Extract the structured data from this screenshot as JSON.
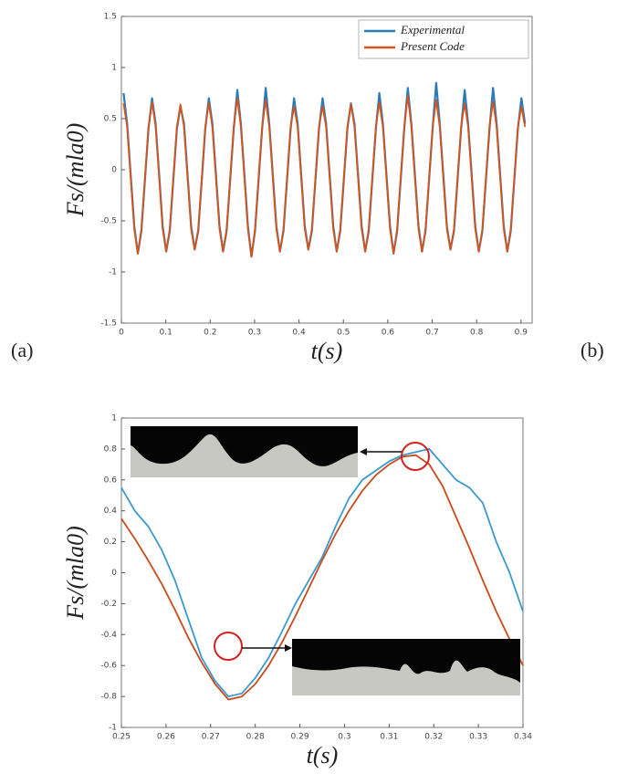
{
  "panel_labels": [
    "(a)",
    "(b)"
  ],
  "chart_data": [
    {
      "type": "line",
      "xlabel": "t(s)",
      "ylabel": "Fs/(mla0)",
      "xlim": [
        0,
        0.925
      ],
      "ylim": [
        -1.5,
        1.5
      ],
      "xticks": [
        0,
        0.1,
        0.2,
        0.3,
        0.4,
        0.5,
        0.6,
        0.7,
        0.8,
        0.9
      ],
      "yticks": [
        -1.5,
        -1,
        -0.5,
        0,
        0.5,
        1,
        1.5
      ],
      "grid": false,
      "legend": "upper right",
      "x": [
        0.005,
        0.013,
        0.021,
        0.029,
        0.037,
        0.045,
        0.053,
        0.061,
        0.069,
        0.077,
        0.085,
        0.093,
        0.101,
        0.109,
        0.117,
        0.125,
        0.133,
        0.141,
        0.149,
        0.157,
        0.165,
        0.173,
        0.181,
        0.189,
        0.197,
        0.205,
        0.213,
        0.221,
        0.229,
        0.237,
        0.245,
        0.253,
        0.261,
        0.269,
        0.277,
        0.285,
        0.293,
        0.301,
        0.309,
        0.317,
        0.325,
        0.333,
        0.341,
        0.349,
        0.357,
        0.365,
        0.373,
        0.381,
        0.389,
        0.397,
        0.405,
        0.413,
        0.421,
        0.429,
        0.437,
        0.445,
        0.453,
        0.461,
        0.469,
        0.477,
        0.485,
        0.493,
        0.501,
        0.509,
        0.517,
        0.525,
        0.533,
        0.541,
        0.549,
        0.557,
        0.565,
        0.573,
        0.581,
        0.589,
        0.597,
        0.605,
        0.613,
        0.621,
        0.629,
        0.637,
        0.645,
        0.653,
        0.661,
        0.669,
        0.677,
        0.685,
        0.693,
        0.701,
        0.709,
        0.717,
        0.725,
        0.733,
        0.741,
        0.749,
        0.757,
        0.765,
        0.773,
        0.781,
        0.789,
        0.797,
        0.805,
        0.813,
        0.821,
        0.829,
        0.837,
        0.845,
        0.853,
        0.861,
        0.869,
        0.877,
        0.885,
        0.893,
        0.901,
        0.909
      ],
      "series": [
        {
          "name": "Experimental",
          "color": "#2b7bb9",
          "values": [
            0.75,
            0.45,
            -0.05,
            -0.55,
            -0.82,
            -0.6,
            -0.1,
            0.4,
            0.7,
            0.45,
            -0.05,
            -0.55,
            -0.8,
            -0.6,
            -0.1,
            0.4,
            0.62,
            0.45,
            -0.05,
            -0.55,
            -0.78,
            -0.6,
            -0.1,
            0.4,
            0.7,
            0.45,
            -0.05,
            -0.55,
            -0.8,
            -0.6,
            -0.1,
            0.4,
            0.78,
            0.45,
            -0.05,
            -0.55,
            -0.85,
            -0.6,
            -0.1,
            0.4,
            0.8,
            0.45,
            -0.05,
            -0.55,
            -0.8,
            -0.6,
            -0.1,
            0.4,
            0.7,
            0.45,
            -0.05,
            -0.55,
            -0.78,
            -0.6,
            -0.1,
            0.4,
            0.7,
            0.45,
            -0.05,
            -0.55,
            -0.8,
            -0.6,
            -0.1,
            0.4,
            0.65,
            0.45,
            -0.05,
            -0.55,
            -0.8,
            -0.6,
            -0.1,
            0.4,
            0.75,
            0.45,
            -0.05,
            -0.55,
            -0.82,
            -0.6,
            -0.1,
            0.4,
            0.8,
            0.45,
            -0.05,
            -0.55,
            -0.8,
            -0.6,
            -0.1,
            0.4,
            0.85,
            0.45,
            -0.05,
            -0.55,
            -0.78,
            -0.6,
            -0.1,
            0.4,
            0.78,
            0.45,
            -0.05,
            -0.55,
            -0.8,
            -0.6,
            -0.1,
            0.4,
            0.8,
            0.45,
            -0.05,
            -0.55,
            -0.8,
            -0.6,
            -0.1,
            0.4,
            0.7,
            0.45
          ]
        },
        {
          "name": "Present Code",
          "color": "#d95319",
          "values": [
            0.65,
            0.42,
            -0.08,
            -0.58,
            -0.82,
            -0.58,
            -0.08,
            0.42,
            0.66,
            0.42,
            -0.08,
            -0.58,
            -0.8,
            -0.58,
            -0.08,
            0.42,
            0.64,
            0.42,
            -0.08,
            -0.58,
            -0.78,
            -0.58,
            -0.08,
            0.42,
            0.65,
            0.42,
            -0.08,
            -0.58,
            -0.8,
            -0.58,
            -0.08,
            0.42,
            0.7,
            0.42,
            -0.08,
            -0.58,
            -0.85,
            -0.58,
            -0.08,
            0.42,
            0.68,
            0.42,
            -0.08,
            -0.58,
            -0.8,
            -0.58,
            -0.08,
            0.42,
            0.62,
            0.42,
            -0.08,
            -0.58,
            -0.78,
            -0.58,
            -0.08,
            0.42,
            0.62,
            0.42,
            -0.08,
            -0.58,
            -0.8,
            -0.58,
            -0.08,
            0.42,
            0.64,
            0.42,
            -0.08,
            -0.58,
            -0.8,
            -0.58,
            -0.08,
            0.42,
            0.66,
            0.42,
            -0.08,
            -0.58,
            -0.82,
            -0.58,
            -0.08,
            0.42,
            0.72,
            0.42,
            -0.08,
            -0.58,
            -0.8,
            -0.58,
            -0.08,
            0.42,
            0.68,
            0.42,
            -0.08,
            -0.58,
            -0.78,
            -0.58,
            -0.08,
            0.42,
            0.65,
            0.42,
            -0.08,
            -0.58,
            -0.8,
            -0.58,
            -0.08,
            0.42,
            0.67,
            0.42,
            -0.08,
            -0.58,
            -0.8,
            -0.58,
            -0.08,
            0.42,
            0.62,
            0.42
          ]
        }
      ]
    },
    {
      "type": "line",
      "xlabel": "t(s)",
      "ylabel": "Fs/(mla0)",
      "xlim": [
        0.25,
        0.34
      ],
      "ylim": [
        -1,
        1
      ],
      "xticks": [
        0.25,
        0.26,
        0.27,
        0.28,
        0.29,
        0.3,
        0.31,
        0.32,
        0.33,
        0.34
      ],
      "yticks": [
        -1,
        -0.8,
        -0.6,
        -0.4,
        -0.2,
        0,
        0.2,
        0.4,
        0.6,
        0.8,
        1
      ],
      "grid": false,
      "x": [
        0.25,
        0.253,
        0.256,
        0.259,
        0.262,
        0.265,
        0.268,
        0.271,
        0.274,
        0.277,
        0.28,
        0.283,
        0.286,
        0.289,
        0.292,
        0.295,
        0.298,
        0.301,
        0.304,
        0.307,
        0.31,
        0.313,
        0.316,
        0.319,
        0.322,
        0.325,
        0.328,
        0.331,
        0.334,
        0.337,
        0.34
      ],
      "series": [
        {
          "name": null,
          "color": "#3a9ad0",
          "values": [
            0.55,
            0.4,
            0.3,
            0.15,
            -0.05,
            -0.3,
            -0.55,
            -0.7,
            -0.8,
            -0.78,
            -0.68,
            -0.55,
            -0.38,
            -0.2,
            -0.05,
            0.1,
            0.3,
            0.48,
            0.6,
            0.66,
            0.72,
            0.76,
            0.78,
            0.8,
            0.7,
            0.6,
            0.55,
            0.45,
            0.2,
            0.0,
            -0.25
          ]
        },
        {
          "name": null,
          "color": "#c94a1a",
          "values": [
            0.35,
            0.22,
            0.08,
            -0.07,
            -0.24,
            -0.42,
            -0.58,
            -0.72,
            -0.82,
            -0.8,
            -0.72,
            -0.6,
            -0.45,
            -0.28,
            -0.1,
            0.08,
            0.25,
            0.4,
            0.53,
            0.63,
            0.7,
            0.75,
            0.76,
            0.7,
            0.56,
            0.36,
            0.16,
            -0.05,
            -0.25,
            -0.43,
            -0.6
          ]
        }
      ]
    }
  ]
}
